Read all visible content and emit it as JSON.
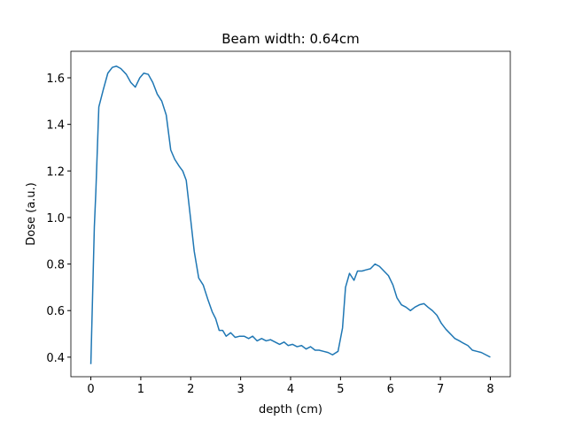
{
  "chart_data": {
    "type": "line",
    "title": "Beam width: 0.64cm",
    "x_label": "depth (cm)",
    "y_label": "Dose (a.u.)",
    "x": [
      0,
      0.07,
      0.1,
      0.16,
      0.25,
      0.34,
      0.43,
      0.51,
      0.6,
      0.71,
      0.8,
      0.89,
      0.98,
      1.06,
      1.15,
      1.24,
      1.33,
      1.42,
      1.51,
      1.6,
      1.68,
      1.77,
      1.84,
      1.91,
      2.0,
      2.07,
      2.16,
      2.25,
      2.34,
      2.43,
      2.5,
      2.57,
      2.64,
      2.71,
      2.8,
      2.89,
      2.98,
      3.07,
      3.16,
      3.24,
      3.33,
      3.42,
      3.51,
      3.6,
      3.69,
      3.78,
      3.87,
      3.95,
      4.04,
      4.13,
      4.22,
      4.31,
      4.4,
      4.49,
      4.57,
      4.66,
      4.75,
      4.84,
      4.95,
      5.04,
      5.1,
      5.18,
      5.27,
      5.34,
      5.43,
      5.51,
      5.6,
      5.69,
      5.78,
      5.87,
      5.96,
      6.05,
      6.13,
      6.22,
      6.31,
      6.4,
      6.49,
      6.58,
      6.67,
      6.75,
      6.84,
      6.93,
      7.02,
      7.11,
      7.2,
      7.29,
      7.38,
      7.46,
      7.55,
      7.64,
      7.73,
      7.82,
      7.91,
      8.0
    ],
    "series": [
      {
        "color": "#1f77b4",
        "values": [
          0.37,
          0.96,
          1.11,
          1.475,
          1.55,
          1.62,
          1.645,
          1.65,
          1.64,
          1.615,
          1.58,
          1.56,
          1.6,
          1.62,
          1.615,
          1.58,
          1.53,
          1.5,
          1.44,
          1.29,
          1.25,
          1.22,
          1.2,
          1.16,
          0.99,
          0.855,
          0.74,
          0.71,
          0.65,
          0.595,
          0.565,
          0.515,
          0.515,
          0.49,
          0.505,
          0.485,
          0.49,
          0.49,
          0.48,
          0.49,
          0.47,
          0.48,
          0.47,
          0.475,
          0.465,
          0.455,
          0.465,
          0.45,
          0.455,
          0.445,
          0.45,
          0.435,
          0.445,
          0.43,
          0.43,
          0.425,
          0.42,
          0.41,
          0.425,
          0.525,
          0.7,
          0.76,
          0.73,
          0.77,
          0.77,
          0.775,
          0.78,
          0.8,
          0.79,
          0.77,
          0.75,
          0.71,
          0.655,
          0.625,
          0.615,
          0.6,
          0.615,
          0.625,
          0.63,
          0.615,
          0.6,
          0.58,
          0.545,
          0.52,
          0.5,
          0.48,
          0.47,
          0.46,
          0.45,
          0.43,
          0.425,
          0.42,
          0.41,
          0.4
        ]
      }
    ],
    "xlim": [
      -0.4,
      8.4
    ],
    "ylim": [
      0.316,
      1.714
    ],
    "xticks": [
      0,
      1,
      2,
      3,
      4,
      5,
      6,
      7,
      8
    ],
    "yticks": [
      0.4,
      0.6,
      0.8,
      {
        "value": 1,
        "label": "1.0"
      },
      1.2,
      1.4,
      1.6
    ]
  }
}
